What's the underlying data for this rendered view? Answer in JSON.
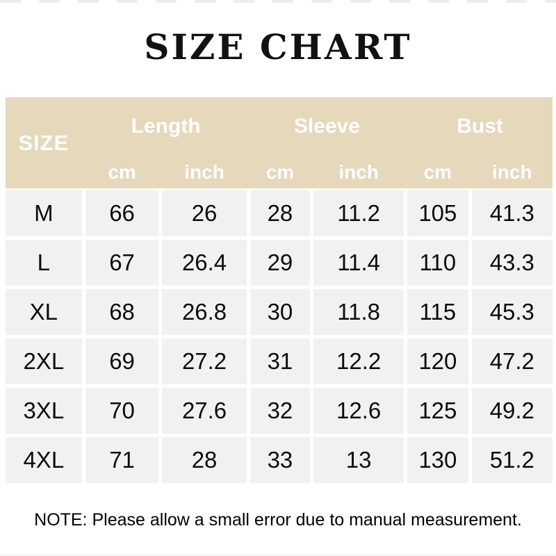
{
  "title": "SIZE CHART",
  "note": "NOTE: Please allow a small error due to manual measurement.",
  "colors": {
    "header_bg": "#e5d8bb",
    "header_text": "#ffffff",
    "row_bg": "#f1f1f1",
    "text": "#0c0c0c",
    "page_bg": "#ffffff"
  },
  "chart_data": {
    "type": "table",
    "title": "SIZE CHART",
    "corner_label": "SIZE",
    "columns": [
      "SIZE",
      "Length cm",
      "Length inch",
      "Sleeve cm",
      "Sleeve inch",
      "Bust cm",
      "Bust inch"
    ],
    "groups": [
      {
        "label": "Length"
      },
      {
        "label": "Sleeve"
      },
      {
        "label": "Bust"
      }
    ],
    "units": [
      "cm",
      "inch",
      "cm",
      "inch",
      "cm",
      "inch"
    ],
    "rows": [
      {
        "size": "M",
        "values": [
          66,
          26,
          28,
          11.2,
          105,
          41.3
        ]
      },
      {
        "size": "L",
        "values": [
          67,
          26.4,
          29,
          11.4,
          110,
          43.3
        ]
      },
      {
        "size": "XL",
        "values": [
          68,
          26.8,
          30,
          11.8,
          115,
          45.3
        ]
      },
      {
        "size": "2XL",
        "values": [
          69,
          27.2,
          31,
          12.2,
          120,
          47.2
        ]
      },
      {
        "size": "3XL",
        "values": [
          70,
          27.6,
          32,
          12.6,
          125,
          49.2
        ]
      },
      {
        "size": "4XL",
        "values": [
          71,
          28,
          33,
          13,
          130,
          51.2
        ]
      }
    ],
    "note": "NOTE: Please allow a small error due to manual measurement."
  }
}
